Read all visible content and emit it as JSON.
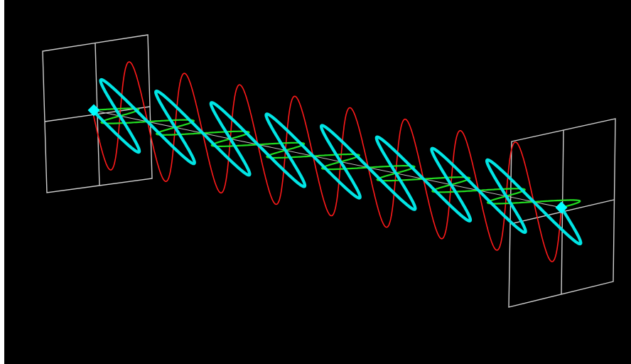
{
  "scene": {
    "background": "#000000",
    "frame_color": "#cfcfcf",
    "axis_color": "#bfbfbf",
    "waves": [
      {
        "name": "red-wave",
        "color": "#ff1a1a",
        "cycles": 8.5,
        "amplitude": 1.0
      },
      {
        "name": "cyan-wave",
        "color": "#00e5e5",
        "cycles": 8.5,
        "amplitude": 1.0
      },
      {
        "name": "green-wave",
        "color": "#22dd22",
        "cycles": 8.5,
        "amplitude": 1.0
      }
    ],
    "markers": [
      {
        "name": "source-marker",
        "color": "#00ffff"
      },
      {
        "name": "end-marker",
        "color": "#00ffff"
      }
    ]
  }
}
